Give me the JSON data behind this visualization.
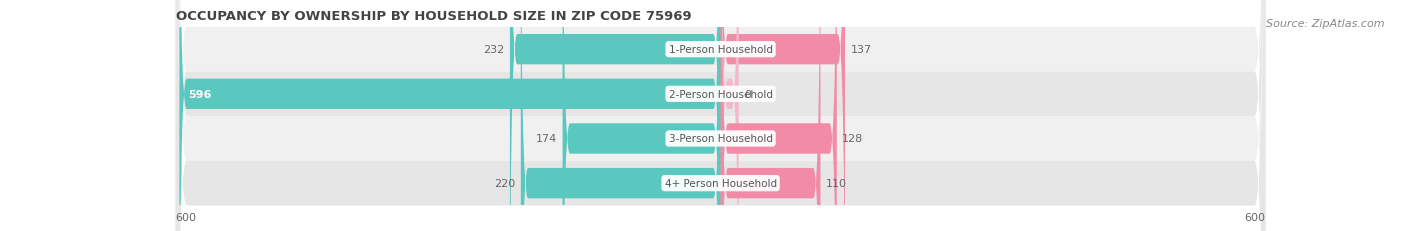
{
  "title": "OCCUPANCY BY OWNERSHIP BY HOUSEHOLD SIZE IN ZIP CODE 75969",
  "source": "Source: ZipAtlas.com",
  "categories": [
    "1-Person Household",
    "2-Person Household",
    "3-Person Household",
    "4+ Person Household"
  ],
  "owner_values": [
    232,
    596,
    174,
    220
  ],
  "renter_values": [
    137,
    0,
    128,
    110
  ],
  "owner_color": "#5BC8C0",
  "renter_color": "#F28BA8",
  "renter_color_small": "#F5B8C8",
  "row_bg_colors": [
    "#F0F0F0",
    "#E6E6E6",
    "#F0F0F0",
    "#E6E6E6"
  ],
  "max_value": 600,
  "title_fontsize": 9.5,
  "source_fontsize": 8,
  "label_fontsize": 7.5,
  "value_fontsize": 8,
  "tick_fontsize": 8
}
